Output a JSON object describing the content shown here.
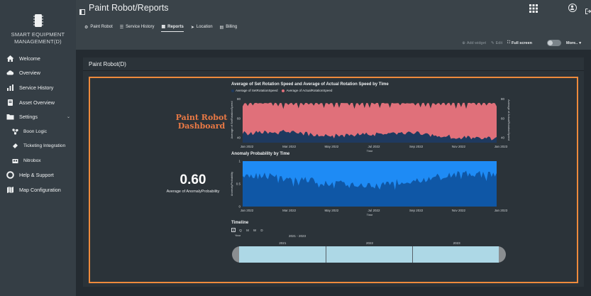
{
  "app": {
    "brand": "SMART EQUIPMENT MANAGEMENT(D)",
    "title": "Paint Robot/Reports"
  },
  "sidebar": {
    "items": [
      {
        "label": "Welcome",
        "icon": "home-icon"
      },
      {
        "label": "Overview",
        "icon": "cloud-icon"
      },
      {
        "label": "Service History",
        "icon": "bar-chart-icon"
      },
      {
        "label": "Asset Overview",
        "icon": "asset-icon"
      },
      {
        "label": "Settings",
        "icon": "folder-icon",
        "expanded": true
      },
      {
        "label": "Boon Logic",
        "icon": "nodes-icon",
        "sub": true
      },
      {
        "label": "Ticketing Integration",
        "icon": "ticket-icon",
        "sub": true
      },
      {
        "label": "Nitrobox",
        "icon": "box-icon",
        "sub": true
      },
      {
        "label": "Help & Support",
        "icon": "lifebuoy-icon"
      },
      {
        "label": "Map Configuration",
        "icon": "map-icon"
      }
    ],
    "caret": "⌄"
  },
  "tabs": [
    {
      "label": "Paint Robot",
      "icon": "robot-icon"
    },
    {
      "label": "Service History",
      "icon": "list-icon"
    },
    {
      "label": "Reports",
      "icon": "dashboard-icon",
      "active": true
    },
    {
      "label": "Location",
      "icon": "location-icon"
    },
    {
      "label": "Billing",
      "icon": "billing-icon"
    }
  ],
  "toolbar": {
    "add_widget": "Add widget",
    "edit": "Edit",
    "full_screen": "Full screen",
    "more": "More..",
    "more_caret": "▾"
  },
  "panel": {
    "title": "Paint Robot(D)"
  },
  "dashboard": {
    "title_line1": "Paint Robot",
    "title_line2": "Dashboard",
    "kpi_value": "0.60",
    "kpi_label": "Average of AnomalyProbability"
  },
  "timeline": {
    "title": "Timeline",
    "granularities": [
      "Y",
      "Q",
      "M",
      "W",
      "D"
    ],
    "selected_granularity": "Y",
    "selected_label": "Year",
    "range": "2021 - 2023",
    "years": [
      "2021",
      "2022",
      "2023"
    ]
  },
  "colors": {
    "accent": "#ee8a3c",
    "dash_title": "#e97945",
    "set_speed": "#1f3a5f",
    "actual_speed": "#e0707a",
    "anomaly": "#1e90ff",
    "timeline_selection": "#add8e6"
  },
  "chart_data": [
    {
      "type": "area",
      "title": "Average of Set Rotation Speed and Average of Actual Rotation Speed by Time",
      "xlabel": "Time",
      "ylabel": "Average of SetRotationSpeed",
      "ylabel_right": "Average of ActualRotationSpeed",
      "x": [
        "Jan 2022",
        "Mar 2022",
        "May 2022",
        "Jul 2022",
        "Sep 2022",
        "Nov 2022",
        "Jan 2023"
      ],
      "ylim": [
        35,
        82
      ],
      "yticks": [
        40,
        60,
        80
      ],
      "yticks_right": [
        40,
        60,
        80
      ],
      "grid": false,
      "legend_position": "top-left",
      "series": [
        {
          "name": "Average of SetRotationSpeed",
          "values": [
            45,
            47,
            42,
            44,
            46,
            41,
            40
          ]
        },
        {
          "name": "Average of ActualRotationSpeed",
          "values": [
            76,
            76,
            76,
            76,
            76,
            76,
            76
          ]
        }
      ]
    },
    {
      "type": "area",
      "title": "Anomaly Probability by Time",
      "xlabel": "Time",
      "ylabel": "AnomalyProbability",
      "x": [
        "Jan 2022",
        "Mar 2022",
        "May 2022",
        "Jul 2022",
        "Sep 2022",
        "Nov 2022",
        "Jan 2023"
      ],
      "ylim": [
        0,
        1
      ],
      "yticks": [
        0.0,
        0.5,
        1.0
      ],
      "grid": false,
      "series": [
        {
          "name": "AnomalyProbability",
          "values": [
            0.72,
            0.65,
            0.55,
            0.45,
            0.58,
            0.72,
            0.72
          ]
        }
      ]
    }
  ]
}
